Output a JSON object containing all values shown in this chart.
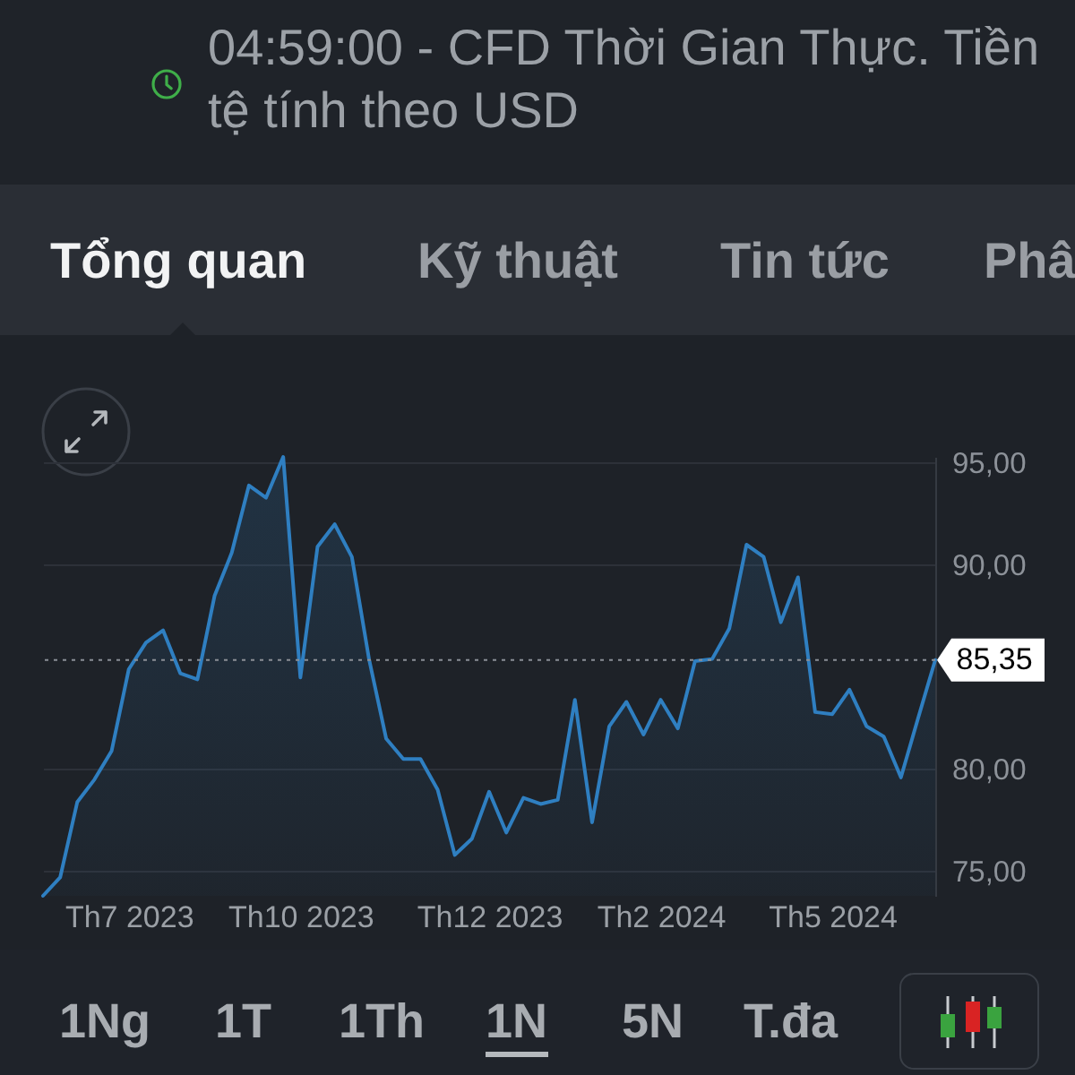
{
  "chart_data": {
    "type": "area",
    "color": "#2f7fc1",
    "categories": [
      null,
      null,
      null,
      null,
      null,
      "Th7 2023",
      null,
      null,
      null,
      null,
      null,
      null,
      null,
      null,
      null,
      "Th10 2023",
      null,
      null,
      null,
      null,
      null,
      null,
      null,
      null,
      null,
      null,
      "Th12 2023",
      null,
      null,
      null,
      null,
      null,
      null,
      null,
      null,
      null,
      "Th2 2024",
      null,
      null,
      null,
      null,
      null,
      null,
      null,
      null,
      null,
      "Th5 2024",
      null,
      null,
      null,
      null,
      null,
      null
    ],
    "values": [
      73.8,
      74.7,
      78.4,
      79.5,
      80.9,
      84.9,
      86.2,
      86.8,
      84.7,
      84.4,
      88.5,
      90.6,
      93.9,
      93.3,
      95.3,
      84.5,
      90.9,
      92.0,
      90.4,
      85.4,
      81.5,
      80.5,
      80.5,
      79.0,
      75.8,
      76.6,
      78.9,
      76.9,
      78.6,
      78.3,
      78.5,
      83.4,
      77.4,
      82.1,
      83.3,
      81.7,
      83.4,
      82.0,
      85.3,
      85.4,
      86.9,
      91.0,
      90.4,
      87.2,
      89.4,
      82.8,
      82.7,
      83.9,
      82.1,
      81.6,
      79.6,
      82.5,
      85.35
    ],
    "ylim": [
      73.8,
      95.3
    ],
    "yticks": [
      {
        "value": 75,
        "label": "75,00"
      },
      {
        "value": 80,
        "label": "80,00"
      },
      {
        "value": 90,
        "label": "90,00"
      },
      {
        "value": 95,
        "label": "95,00"
      }
    ],
    "grid": "y",
    "ref_lines": [
      {
        "axis": "y",
        "value": 85.35,
        "label": "85,35",
        "line_style": "dotted",
        "color": "#8a8f96"
      }
    ],
    "annotations": [
      "04:59:00 - CFD Thời Gian Thực. Tiền tệ tính theo USD",
      "Tổng quan",
      "Kỹ thuật",
      "Tin tức",
      "Phâ",
      "1Ng",
      "1T",
      "1Th",
      "1N",
      "5N",
      "T.đa"
    ]
  }
}
